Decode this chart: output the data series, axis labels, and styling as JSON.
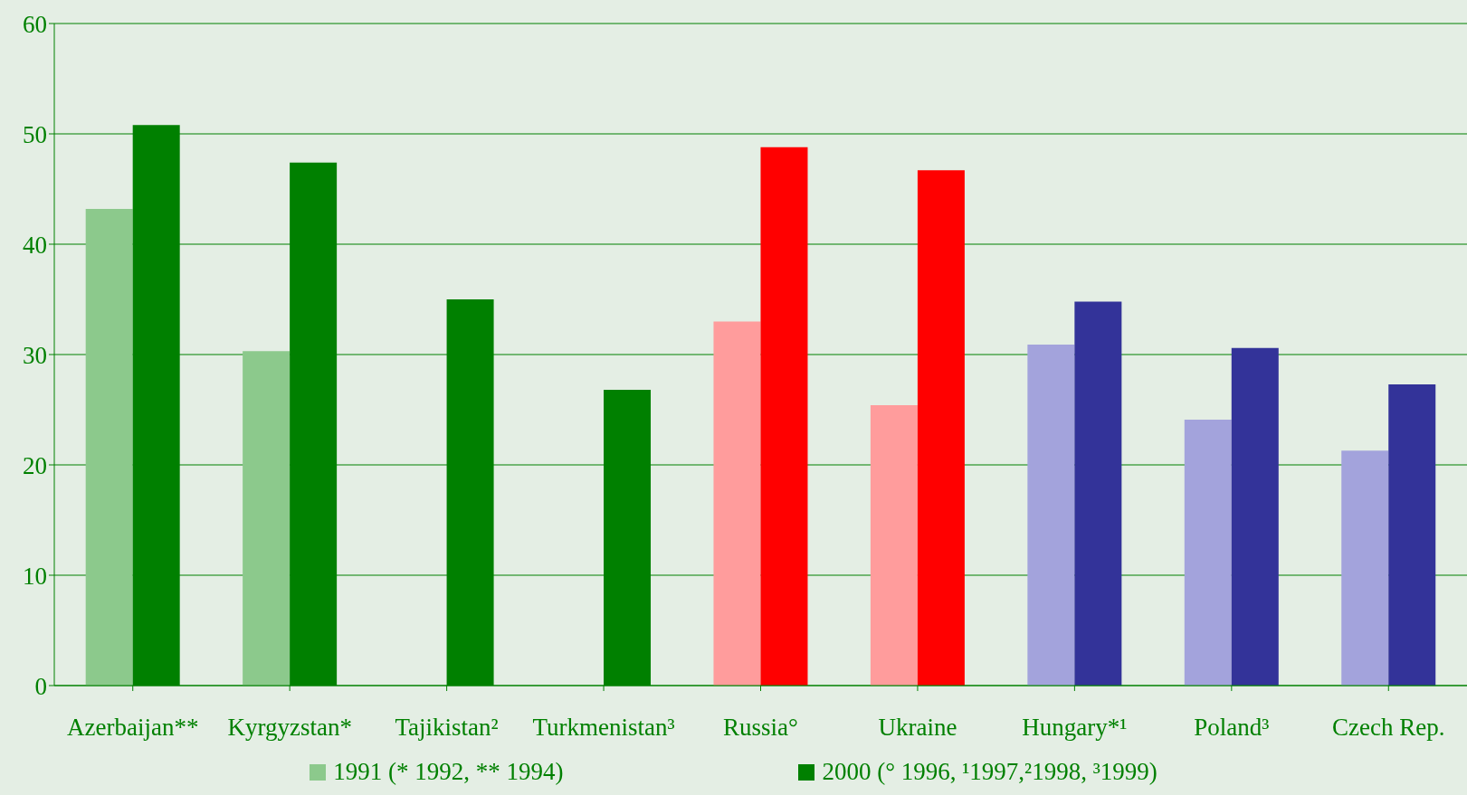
{
  "chart_data": {
    "type": "bar",
    "categories": [
      "Azerbaijan**",
      "Kyrgyzstan*",
      "Tajikistan²",
      "Turkmenistan³",
      "Russia°",
      "Ukraine",
      "Hungary*¹",
      "Poland³",
      "Czech Rep."
    ],
    "series": [
      {
        "name": "1991 (* 1992, ** 1994)",
        "color": "#8cc98c",
        "colors": [
          "#8cc98c",
          "#8cc98c",
          "#8cc98c",
          "#8cc98c",
          "#ff9c9c",
          "#ff9c9c",
          "#a3a3dc",
          "#a3a3dc",
          "#a3a3dc"
        ],
        "values": [
          43.2,
          30.3,
          null,
          null,
          33.0,
          25.4,
          30.9,
          24.1,
          21.3
        ]
      },
      {
        "name": "2000 (° 1996, ¹1997,²1998, ³1999)",
        "color": "#008000",
        "colors": [
          "#008000",
          "#008000",
          "#008000",
          "#008000",
          "#ff0000",
          "#ff0000",
          "#333399",
          "#333399",
          "#333399"
        ],
        "values": [
          50.8,
          47.4,
          35.0,
          26.8,
          48.8,
          46.7,
          34.8,
          30.6,
          27.3
        ]
      }
    ],
    "ylim": [
      0,
      60
    ],
    "yticks": [
      0,
      10,
      20,
      30,
      40,
      50,
      60
    ],
    "grid": "y",
    "legend": "bottom"
  }
}
